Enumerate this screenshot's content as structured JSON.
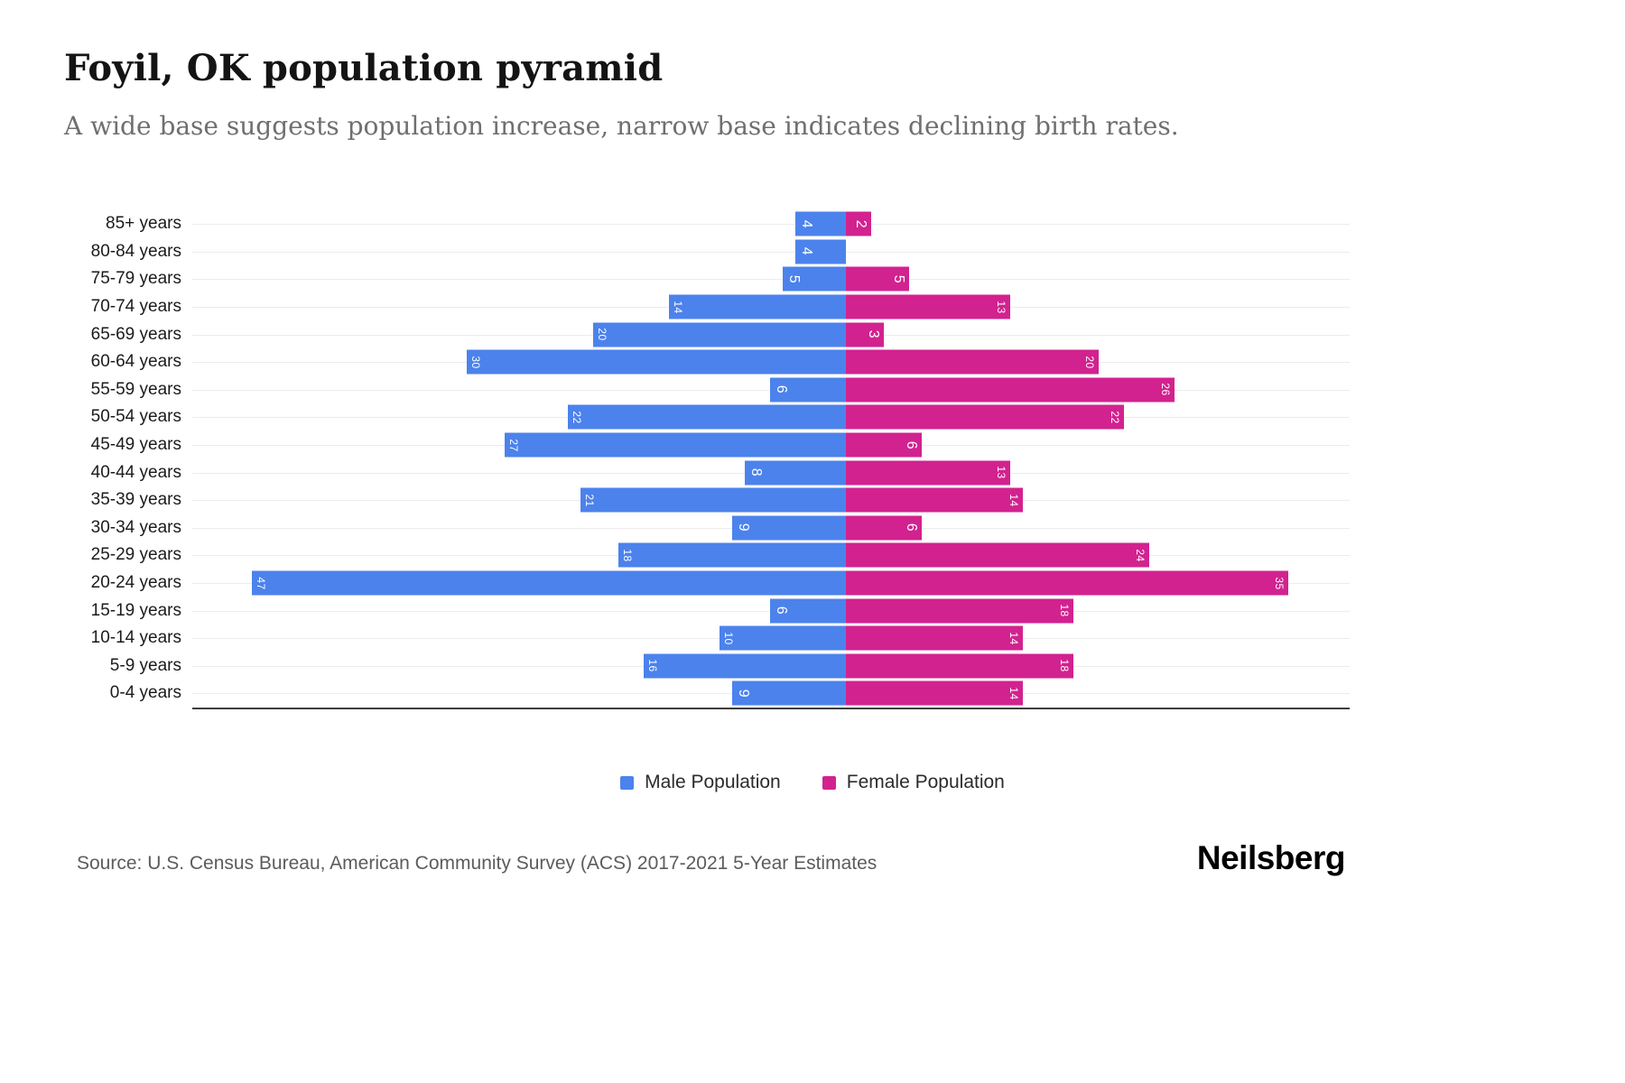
{
  "chart_data": {
    "type": "bar",
    "variant": "population-pyramid-diverging-horizontal",
    "title": "Foyil, OK population pyramid",
    "subtitle": "A wide base suggests population increase, narrow base indicates declining birth rates.",
    "categories": [
      "85+ years",
      "80-84 years",
      "75-79 years",
      "70-74 years",
      "65-69 years",
      "60-64 years",
      "55-59 years",
      "50-54 years",
      "45-49 years",
      "40-44 years",
      "35-39 years",
      "30-34 years",
      "25-29 years",
      "20-24 years",
      "15-19 years",
      "10-14 years",
      "5-9 years",
      "0-4 years"
    ],
    "series": [
      {
        "name": "Male Population",
        "color": "#4c82ec",
        "values": [
          4,
          4,
          5,
          14,
          20,
          30,
          6,
          22,
          27,
          8,
          21,
          9,
          18,
          47,
          6,
          10,
          16,
          9
        ]
      },
      {
        "name": "Female Population",
        "color": "#d2228f",
        "values": [
          2,
          0,
          5,
          13,
          3,
          20,
          26,
          22,
          6,
          13,
          14,
          6,
          24,
          35,
          18,
          14,
          18,
          14
        ]
      }
    ],
    "value_label_color": "#ffffff",
    "xlim_each_side": 50,
    "grid": true,
    "legend_position": "bottom"
  },
  "footer": {
    "source": "Source: U.S. Census Bureau, American Community Survey (ACS) 2017-2021 5-Year Estimates",
    "logo": "Neilsberg"
  }
}
